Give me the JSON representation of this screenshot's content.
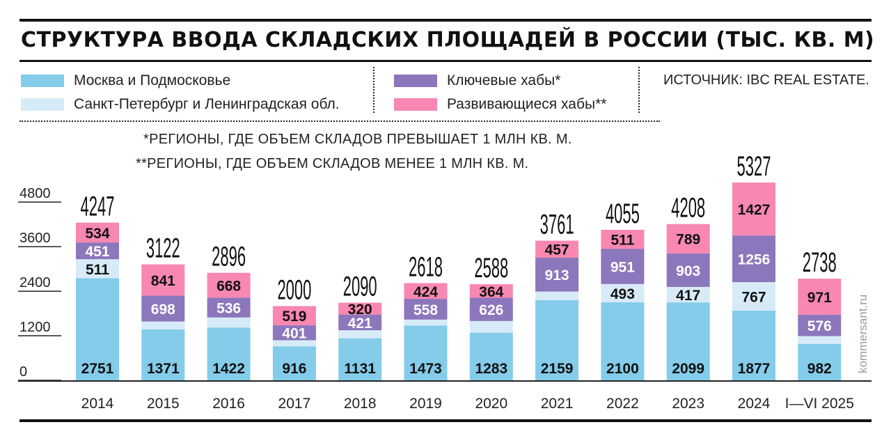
{
  "title": "СТРУКТУРА ВВОДА СКЛАДСКИХ ПЛОЩАДЕЙ В РОССИИ (ТЫС. КВ. М)",
  "source": "ИСТОЧНИК: IBC REAL ESTATE.",
  "notes": {
    "key_hubs": "*РЕГИОНЫ, ГДЕ ОБЪЕМ СКЛАДОВ ПРЕВЫШАЕТ 1 МЛН КВ. М.",
    "developing_hubs": "**РЕГИОНЫ, ГДЕ ОБЪЕМ СКЛАДОВ МЕНЕЕ 1 МЛН КВ. М."
  },
  "watermark": "kommersant.ru",
  "colors": {
    "moscow": "#84ccea",
    "spb": "#d6ebf7",
    "key_hubs": "#8c76bc",
    "developing_hubs": "#f887b1"
  },
  "chart_data": {
    "type": "bar",
    "stacked": true,
    "title": "СТРУКТУРА ВВОДА СКЛАДСКИХ ПЛОЩАДЕЙ В РОССИИ (ТЫС. КВ. М)",
    "categories": [
      "2014",
      "2015",
      "2016",
      "2017",
      "2018",
      "2019",
      "2020",
      "2021",
      "2022",
      "2023",
      "2024",
      "I—VI 2025"
    ],
    "totals": [
      4247,
      3122,
      2896,
      2000,
      2090,
      2618,
      2588,
      3761,
      4055,
      4208,
      5327,
      2738
    ],
    "series": [
      {
        "name": "Москва и Подмосковье",
        "key": "moscow",
        "values": [
          2751,
          1371,
          1422,
          916,
          1131,
          1473,
          1283,
          2159,
          2100,
          2099,
          1877,
          982
        ],
        "shown": [
          true,
          true,
          true,
          true,
          true,
          true,
          true,
          true,
          true,
          true,
          true,
          true
        ]
      },
      {
        "name": "Санкт-Петербург и Ленинградская обл.",
        "key": "spb",
        "values": [
          511,
          212,
          270,
          164,
          218,
          163,
          315,
          232,
          493,
          417,
          767,
          209
        ],
        "shown": [
          true,
          false,
          false,
          false,
          false,
          false,
          false,
          false,
          true,
          true,
          true,
          false
        ]
      },
      {
        "name": "Ключевые хабы*",
        "key": "key_hubs",
        "values": [
          451,
          698,
          536,
          401,
          421,
          558,
          626,
          913,
          951,
          903,
          1256,
          576
        ],
        "shown": [
          true,
          true,
          true,
          true,
          true,
          true,
          true,
          true,
          true,
          true,
          true,
          true
        ]
      },
      {
        "name": "Развивающиеся хабы**",
        "key": "developing_hubs",
        "values": [
          534,
          841,
          668,
          519,
          320,
          424,
          364,
          457,
          511,
          789,
          1427,
          971
        ],
        "shown": [
          true,
          true,
          true,
          true,
          true,
          true,
          true,
          true,
          true,
          true,
          true,
          true
        ]
      }
    ],
    "yticks": [
      0,
      1200,
      2400,
      3600,
      4800
    ],
    "ylim": [
      0,
      5600
    ],
    "legend_position": "top",
    "grid": false
  }
}
